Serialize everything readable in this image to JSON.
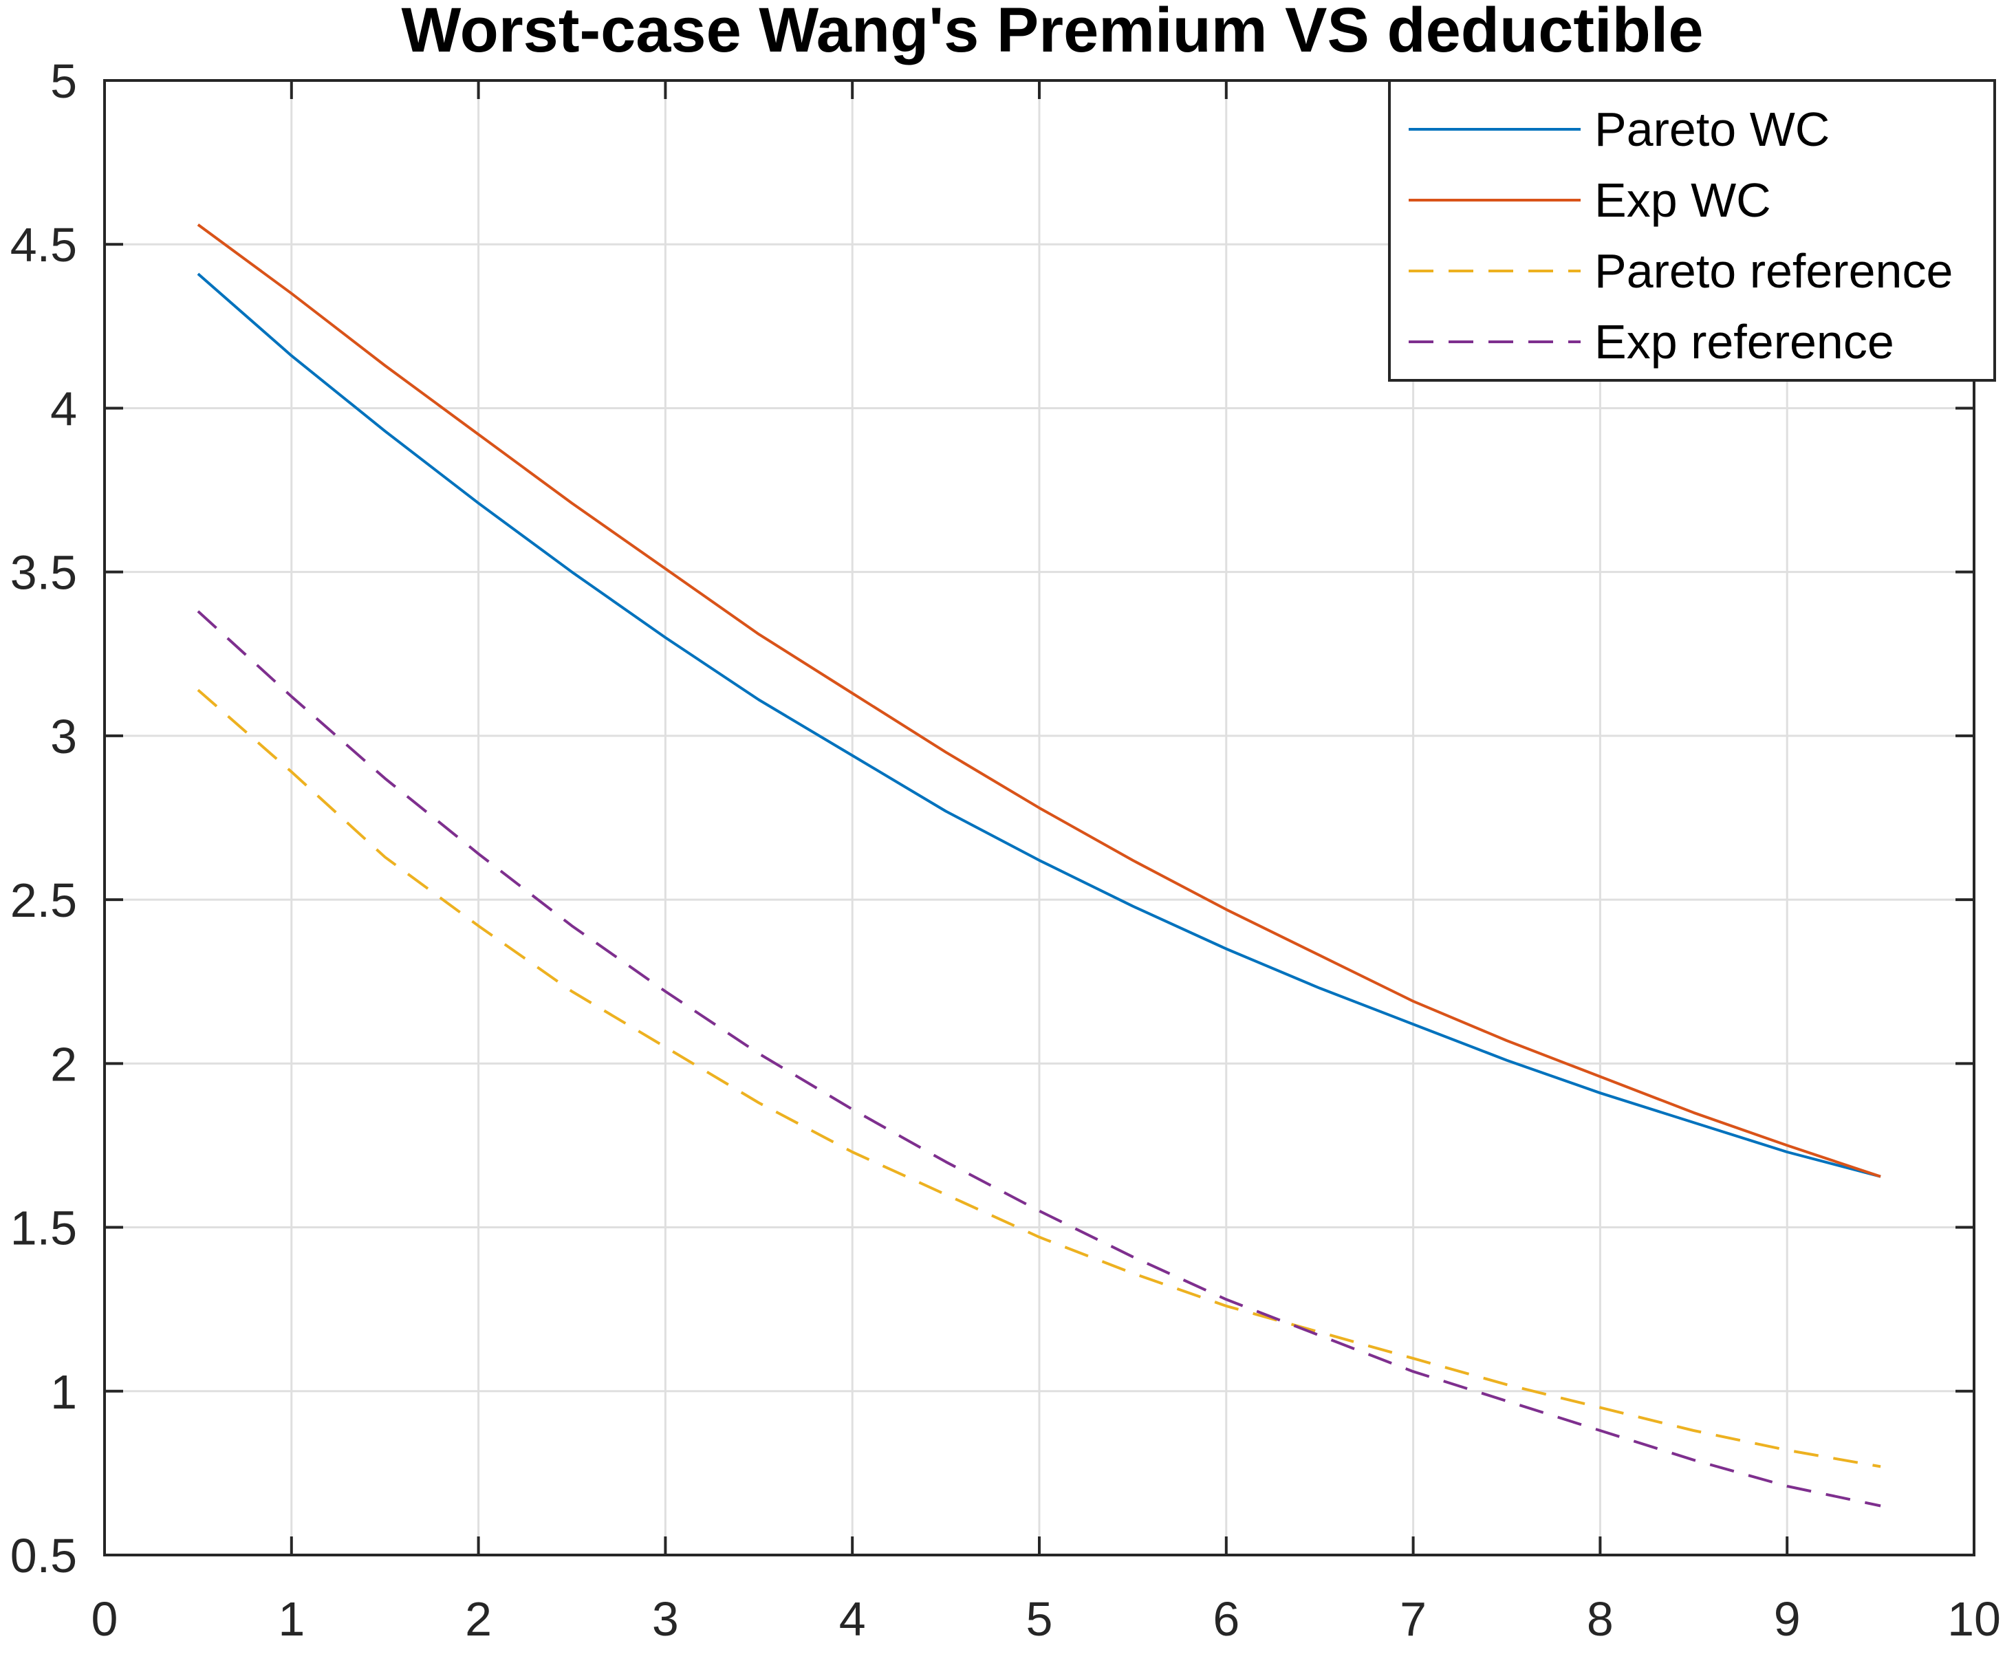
{
  "chart_data": {
    "type": "line",
    "title": "Worst-case Wang's Premium VS deductible",
    "xlabel": "",
    "ylabel": "",
    "xlim": [
      0,
      10
    ],
    "ylim": [
      0.5,
      5
    ],
    "grid": true,
    "legend_position": "top-right",
    "x_ticks": [
      0,
      1,
      2,
      3,
      4,
      5,
      6,
      7,
      8,
      9,
      10
    ],
    "x_tick_labels": [
      "0",
      "1",
      "2",
      "3",
      "4",
      "5",
      "6",
      "7",
      "8",
      "9",
      "10"
    ],
    "y_ticks": [
      0.5,
      1,
      1.5,
      2,
      2.5,
      3,
      3.5,
      4,
      4.5,
      5
    ],
    "y_tick_labels": [
      "0.5",
      "1",
      "1.5",
      "2",
      "2.5",
      "3",
      "3.5",
      "4",
      "4.5",
      "5"
    ],
    "x": [
      0.5,
      1,
      1.5,
      2,
      2.5,
      3,
      3.5,
      4,
      4.5,
      5,
      5.5,
      6,
      6.5,
      7,
      7.5,
      8,
      8.5,
      9,
      9.5
    ],
    "series": [
      {
        "name": "Pareto WC",
        "color": "#0072bd",
        "dash": "solid",
        "values": [
          4.41,
          4.16,
          3.93,
          3.71,
          3.5,
          3.3,
          3.11,
          2.94,
          2.77,
          2.62,
          2.48,
          2.35,
          2.23,
          2.12,
          2.01,
          1.91,
          1.82,
          1.73,
          1.655
        ]
      },
      {
        "name": "Exp WC",
        "color": "#d95319",
        "dash": "solid",
        "values": [
          4.56,
          4.35,
          4.13,
          3.92,
          3.71,
          3.51,
          3.31,
          3.13,
          2.95,
          2.78,
          2.62,
          2.47,
          2.33,
          2.19,
          2.07,
          1.96,
          1.85,
          1.75,
          1.655
        ]
      },
      {
        "name": "Pareto reference",
        "color": "#edb120",
        "dash": "dashed",
        "values": [
          3.14,
          2.89,
          2.63,
          2.42,
          2.22,
          2.05,
          1.88,
          1.73,
          1.6,
          1.47,
          1.36,
          1.26,
          1.18,
          1.1,
          1.02,
          0.95,
          0.88,
          0.82,
          0.77
        ]
      },
      {
        "name": "Exp reference",
        "color": "#7e2f8e",
        "dash": "dashed",
        "values": [
          3.38,
          3.12,
          2.87,
          2.64,
          2.42,
          2.22,
          2.03,
          1.86,
          1.7,
          1.55,
          1.41,
          1.28,
          1.17,
          1.06,
          0.97,
          0.88,
          0.79,
          0.71,
          0.65
        ]
      }
    ]
  }
}
